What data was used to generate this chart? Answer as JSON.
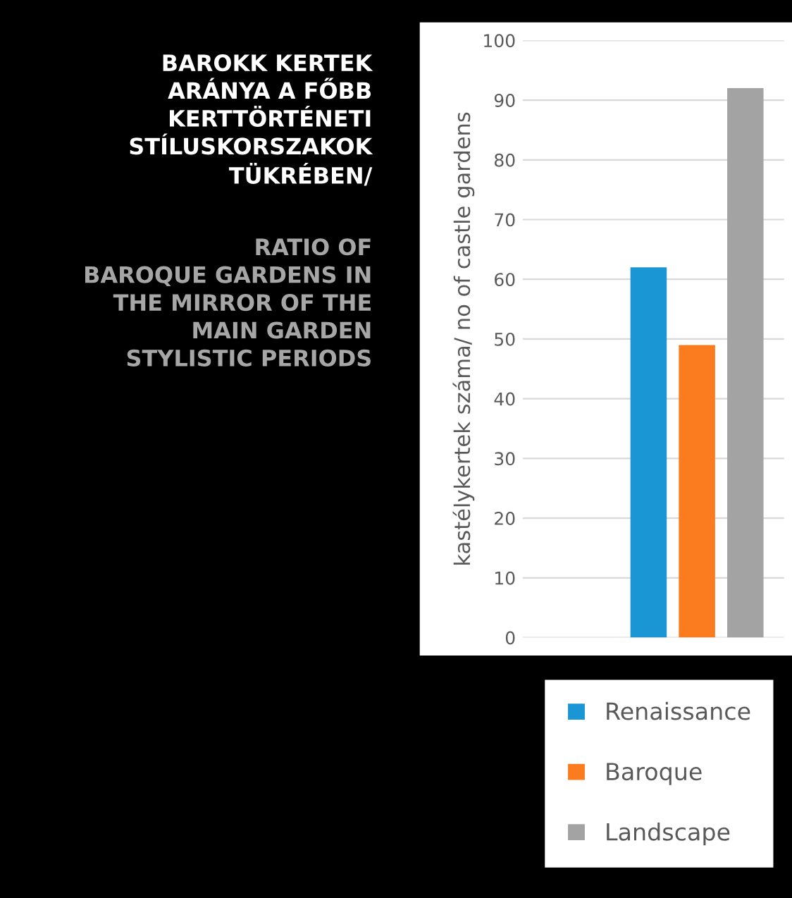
{
  "chart_data": {
    "type": "bar",
    "title": "BAROKK KERTEK\nARÁNYA A FŐBB\nKERTTÖRTÉNETI\nSTÍLUSKORSZAKOK\nTÜKRÉBEN/",
    "subtitle": "RATIO OF\nBAROQUE GARDENS IN\nTHE MIRROR OF THE\nMAIN GARDEN\nSTYLISTIC PERIODS",
    "ylabel": "kastélykertek száma/ no of castle gardens",
    "categories": [
      null
    ],
    "series": [
      {
        "name": "Renaissance",
        "color": "#1a96d4",
        "values": [
          62
        ]
      },
      {
        "name": "Baroque",
        "color": "#fb7c1f",
        "values": [
          49
        ]
      },
      {
        "name": "Landscape",
        "color": "#a3a3a3",
        "values": [
          92
        ]
      }
    ],
    "ylim": [
      0,
      100
    ],
    "yticks": [
      0,
      10,
      20,
      30,
      40,
      50,
      60,
      70,
      80,
      90,
      100
    ],
    "grid": "y",
    "legend": "bottom",
    "tick_labels": "y"
  }
}
